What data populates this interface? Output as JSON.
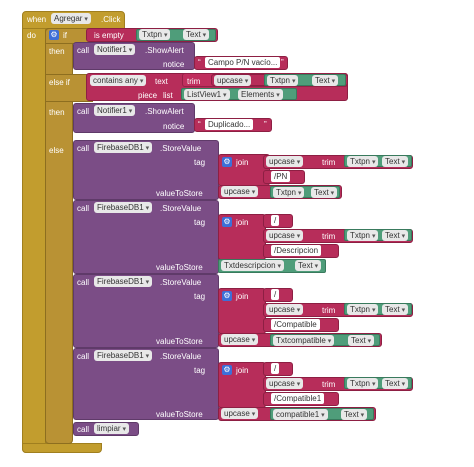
{
  "when_label": "when",
  "event_component": "Agregar",
  "event_name": ".Click",
  "do_label": "do",
  "if_label": "if",
  "then_label": "then",
  "elseif_label": "else if",
  "else_label": "else",
  "call_label": "call",
  "is_empty_label": "is empty",
  "txtpn": "Txtpn",
  "text_prop": "Text",
  "elements_prop": "Elements",
  "notifier": "Notifier1",
  "show_alert": ".ShowAlert",
  "notice_label": "notice",
  "alert1_text": "Campo P/N vacío...",
  "alert2_text": "Duplicado...",
  "contains_any": "contains any",
  "text_label": "text",
  "trim_label": "trim",
  "upcase_label": "upcase",
  "piece_label": "piece",
  "list_label": "list",
  "listview": "ListView1",
  "firebase": "FirebaseDB1",
  "store_value": ".StoreValue",
  "tag_label": "tag",
  "value_to_store_label": "valueToStore",
  "join_label": "join",
  "slash": "/",
  "pn_text": "/PN",
  "desc_text": "/Descripcion",
  "compat_text": "/Compatible",
  "compat1_text": "/Compatible1",
  "txtdescripcion": "Txtdescripcion",
  "txtcompatible": "Txtcompatible",
  "compatible1": "compatible1",
  "limpiar": "limpiar",
  "colors": {
    "event": "#c29d2e",
    "control": "#b99234",
    "procedure": "#7b4d86",
    "text": "#b72d5a",
    "component": "#4f9d7a",
    "mutator": "#3d6fd8"
  }
}
